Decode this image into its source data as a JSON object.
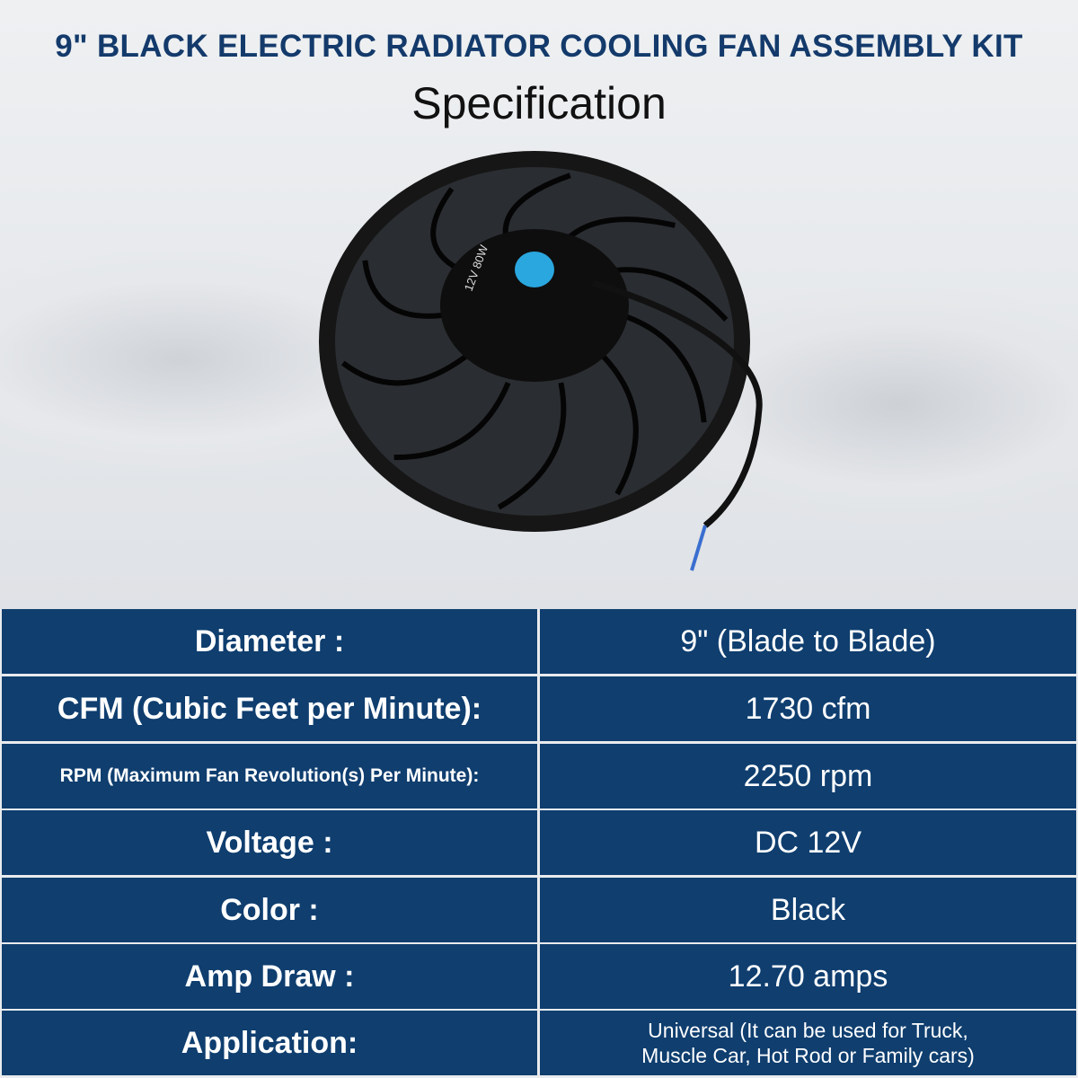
{
  "header": {
    "title": "9\" BLACK ELECTRIC RADIATOR COOLING FAN ASSEMBLY KIT",
    "subtitle": "Specification"
  },
  "product_image": {
    "motor_label": "12V 80W",
    "colors": {
      "fan": "#111111",
      "motor_cap": "#2aa7df"
    }
  },
  "specs": [
    {
      "label": "Diameter :",
      "value": "9\" (Blade to Blade)"
    },
    {
      "label": "CFM (Cubic Feet per Minute):",
      "value": "1730 cfm"
    },
    {
      "label": "RPM (Maximum Fan Revolution(s) Per Minute):",
      "value": "2250 rpm"
    },
    {
      "label": "Voltage :",
      "value": "DC 12V"
    },
    {
      "label": "Color :",
      "value": "Black"
    },
    {
      "label": "Amp Draw :",
      "value": "12.70 amps"
    },
    {
      "label": "Application:",
      "value": "Universal (It can be used for Truck, Muscle Car, Hot Rod or Family cars)"
    }
  ],
  "colors": {
    "table_bg": "#0f3e6f",
    "title": "#133a6b"
  }
}
